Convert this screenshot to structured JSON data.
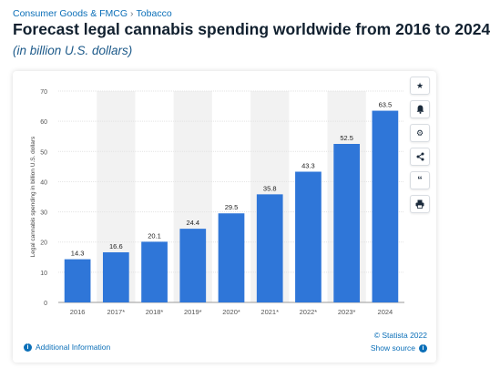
{
  "breadcrumb": {
    "category": "Consumer Goods & FMCG",
    "separator": "›",
    "subcategory": "Tobacco"
  },
  "header": {
    "title": "Forecast legal cannabis spending worldwide from 2016 to 2024",
    "subtitle": "(in billion U.S. dollars)"
  },
  "sidebar": {
    "icons": [
      "star-icon",
      "bell-icon",
      "gear-icon",
      "share-icon",
      "quote-icon",
      "print-icon"
    ]
  },
  "footer": {
    "additional_info": "Additional Information",
    "credit": "© Statista 2022",
    "show_source": "Show source"
  },
  "colors": {
    "bar": "#2f76d8",
    "band": "#f2f2f2",
    "link": "#0b6fb8"
  },
  "chart_data": {
    "type": "bar",
    "categories": [
      "2016",
      "2017*",
      "2018*",
      "2019*",
      "2020*",
      "2021*",
      "2022*",
      "2023*",
      "2024"
    ],
    "values": [
      14.3,
      16.6,
      20.1,
      24.4,
      29.5,
      35.8,
      43.3,
      52.5,
      63.5
    ],
    "value_labels": [
      "14.3",
      "16.6",
      "20.1",
      "24.4",
      "29.5",
      "35.8",
      "43.3",
      "52.5",
      "63.5"
    ],
    "ylabel": "Legal cannabis spending in billion U.S. dollars",
    "xlabel": "",
    "ylim": [
      0,
      70
    ],
    "yticks": [
      0,
      10,
      20,
      30,
      40,
      50,
      60,
      70
    ],
    "grid": true,
    "legend": "none"
  }
}
